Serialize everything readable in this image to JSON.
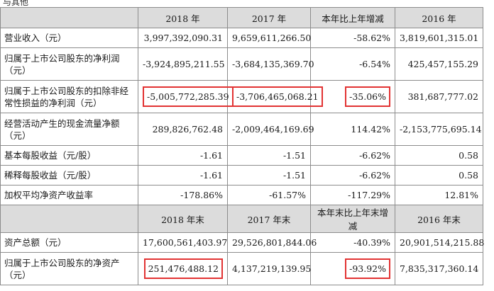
{
  "top_fragment": "与其他",
  "header1": [
    "",
    "2018 年",
    "2017 年",
    "本年比上年增减",
    "2016 年"
  ],
  "rows1": [
    {
      "label": "营业收入（元）",
      "values": [
        "3,997,392,090.31",
        "9,659,611,266.50",
        "-58.62%",
        "3,819,601,315.01"
      ],
      "tall": false
    },
    {
      "label": "归属于上市公司股东的净利润（元）",
      "values": [
        "-3,924,895,211.55",
        "-3,684,135,369.70",
        "-6.54%",
        "425,457,155.29"
      ],
      "tall": true
    },
    {
      "label": "归属于上市公司股东的扣除非经常性损益的净利润（元）",
      "values": [
        "-5,005,772,285.39",
        "-3,706,465,068.21",
        "-35.06%",
        "381,687,777.02"
      ],
      "tall": true,
      "highlight": [
        0,
        1,
        2
      ]
    },
    {
      "label": "经营活动产生的现金流量净额（元）",
      "values": [
        "289,826,762.48",
        "-2,009,464,169.69",
        "114.42%",
        "-2,153,775,695.14"
      ],
      "tall": true
    },
    {
      "label": "基本每股收益（元/股）",
      "values": [
        "-1.61",
        "-1.51",
        "-6.62%",
        "0.58"
      ],
      "tall": false
    },
    {
      "label": "稀释每股收益（元/股）",
      "values": [
        "-1.61",
        "-1.51",
        "-6.62%",
        "0.58"
      ],
      "tall": false
    },
    {
      "label": "加权平均净资产收益率",
      "values": [
        "-178.86%",
        "-61.57%",
        "-117.29%",
        "12.81%"
      ],
      "tall": false
    }
  ],
  "header2": [
    "",
    "2018 年末",
    "2017 年末",
    "本年末比上年末增减",
    "2016 年末"
  ],
  "rows2": [
    {
      "label": "资产总额（元）",
      "values": [
        "17,600,561,403.97",
        "29,526,801,844.06",
        "-40.39%",
        "20,901,514,215.88"
      ],
      "tall": false
    },
    {
      "label": "归属于上市公司股东的净资产（元）",
      "values": [
        "251,476,488.12",
        "4,137,219,139.95",
        "-93.92%",
        "7,835,317,360.14"
      ],
      "tall": true,
      "highlight": [
        0,
        2
      ]
    }
  ],
  "highlight_color": "#e23333"
}
